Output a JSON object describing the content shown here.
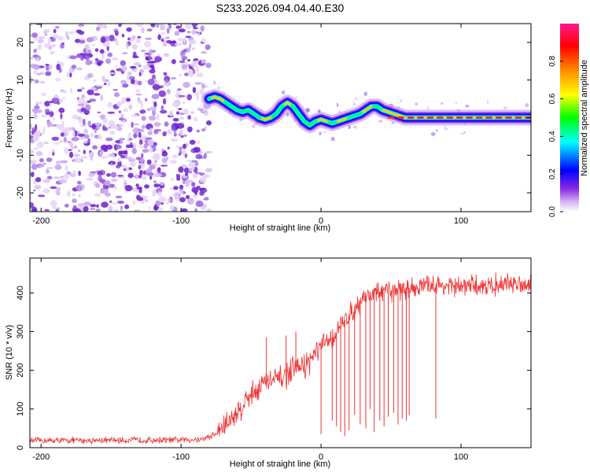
{
  "title": "S233.2026.094.04.40.E30",
  "chart_data": [
    {
      "type": "heatmap",
      "title": "S233.2026.094.04.40.E30",
      "xlabel": "Height of straight line (km)",
      "ylabel": "Frequency (Hz)",
      "xlim": [
        -208,
        150
      ],
      "ylim": [
        -25,
        25
      ],
      "xticks": [
        -200,
        -100,
        0,
        100
      ],
      "yticks": [
        -20,
        -10,
        0,
        10,
        20
      ],
      "noise_region_x": [
        -208,
        -80
      ],
      "ridge": {
        "x": [
          -80,
          -76,
          -72,
          -68,
          -64,
          -60,
          -56,
          -52,
          -48,
          -44,
          -40,
          -36,
          -32,
          -28,
          -24,
          -20,
          -16,
          -12,
          -8,
          -4,
          0,
          4,
          8,
          12,
          16,
          20,
          24,
          28,
          32,
          36,
          40,
          44,
          48,
          52,
          60,
          80,
          100,
          120,
          150
        ],
        "y": [
          5,
          5.5,
          5,
          4,
          3,
          2,
          1.5,
          2,
          1,
          0,
          -0.5,
          0,
          1,
          3,
          4,
          3,
          1,
          -1,
          -2,
          -1,
          -0.5,
          -1,
          -1.5,
          -1,
          -0.5,
          0,
          0.5,
          1,
          2,
          3,
          3,
          2,
          1.5,
          1,
          0,
          0,
          0,
          0,
          0
        ]
      },
      "colorbar": {
        "label": "Normalized spectral amplitude",
        "ticks": [
          0.0,
          0.2,
          0.4,
          0.6,
          0.8
        ],
        "tick_labels": [
          "0.0",
          "0.2",
          "0.4",
          "0.6",
          "0.8"
        ],
        "colors": [
          "#ffffff",
          "#8a2be2",
          "#0000ff",
          "#00ffff",
          "#00ff00",
          "#ffff00",
          "#ff8c00",
          "#ff0000",
          "#ff00aa"
        ]
      }
    },
    {
      "type": "line",
      "xlabel": "Height of straight line (km)",
      "ylabel": "SNR (10 * v/v)",
      "xlim": [
        -208,
        150
      ],
      "ylim": [
        0,
        490
      ],
      "xticks": [
        -200,
        -100,
        0,
        100
      ],
      "yticks": [
        0,
        100,
        200,
        300,
        400
      ],
      "color": "#ee3333",
      "trend": {
        "x": [
          -208,
          -100,
          -85,
          -75,
          -60,
          -50,
          -40,
          -30,
          -20,
          -10,
          0,
          10,
          15,
          20,
          25,
          30,
          40,
          60,
          80,
          100,
          120,
          150
        ],
        "y": [
          18,
          20,
          22,
          35,
          90,
          140,
          170,
          175,
          200,
          215,
          260,
          290,
          320,
          345,
          360,
          390,
          400,
          410,
          420,
          415,
          420,
          425
        ]
      },
      "spikes": [
        {
          "x": -39,
          "y": 285
        },
        {
          "x": -25,
          "y": 290
        },
        {
          "x": -18,
          "y": 300
        },
        {
          "x": 0,
          "y": 35
        },
        {
          "x": 8,
          "y": 70
        },
        {
          "x": 11,
          "y": 55
        },
        {
          "x": 14,
          "y": 40
        },
        {
          "x": 17,
          "y": 30
        },
        {
          "x": 20,
          "y": 45
        },
        {
          "x": 24,
          "y": 85
        },
        {
          "x": 28,
          "y": 60
        },
        {
          "x": 32,
          "y": 50
        },
        {
          "x": 35,
          "y": 100
        },
        {
          "x": 38,
          "y": 40
        },
        {
          "x": 42,
          "y": 70
        },
        {
          "x": 45,
          "y": 55
        },
        {
          "x": 48,
          "y": 80
        },
        {
          "x": 52,
          "y": 90
        },
        {
          "x": 55,
          "y": 60
        },
        {
          "x": 58,
          "y": 75
        },
        {
          "x": 61,
          "y": 70
        },
        {
          "x": 63,
          "y": 85
        },
        {
          "x": 82,
          "y": 75
        }
      ]
    }
  ]
}
